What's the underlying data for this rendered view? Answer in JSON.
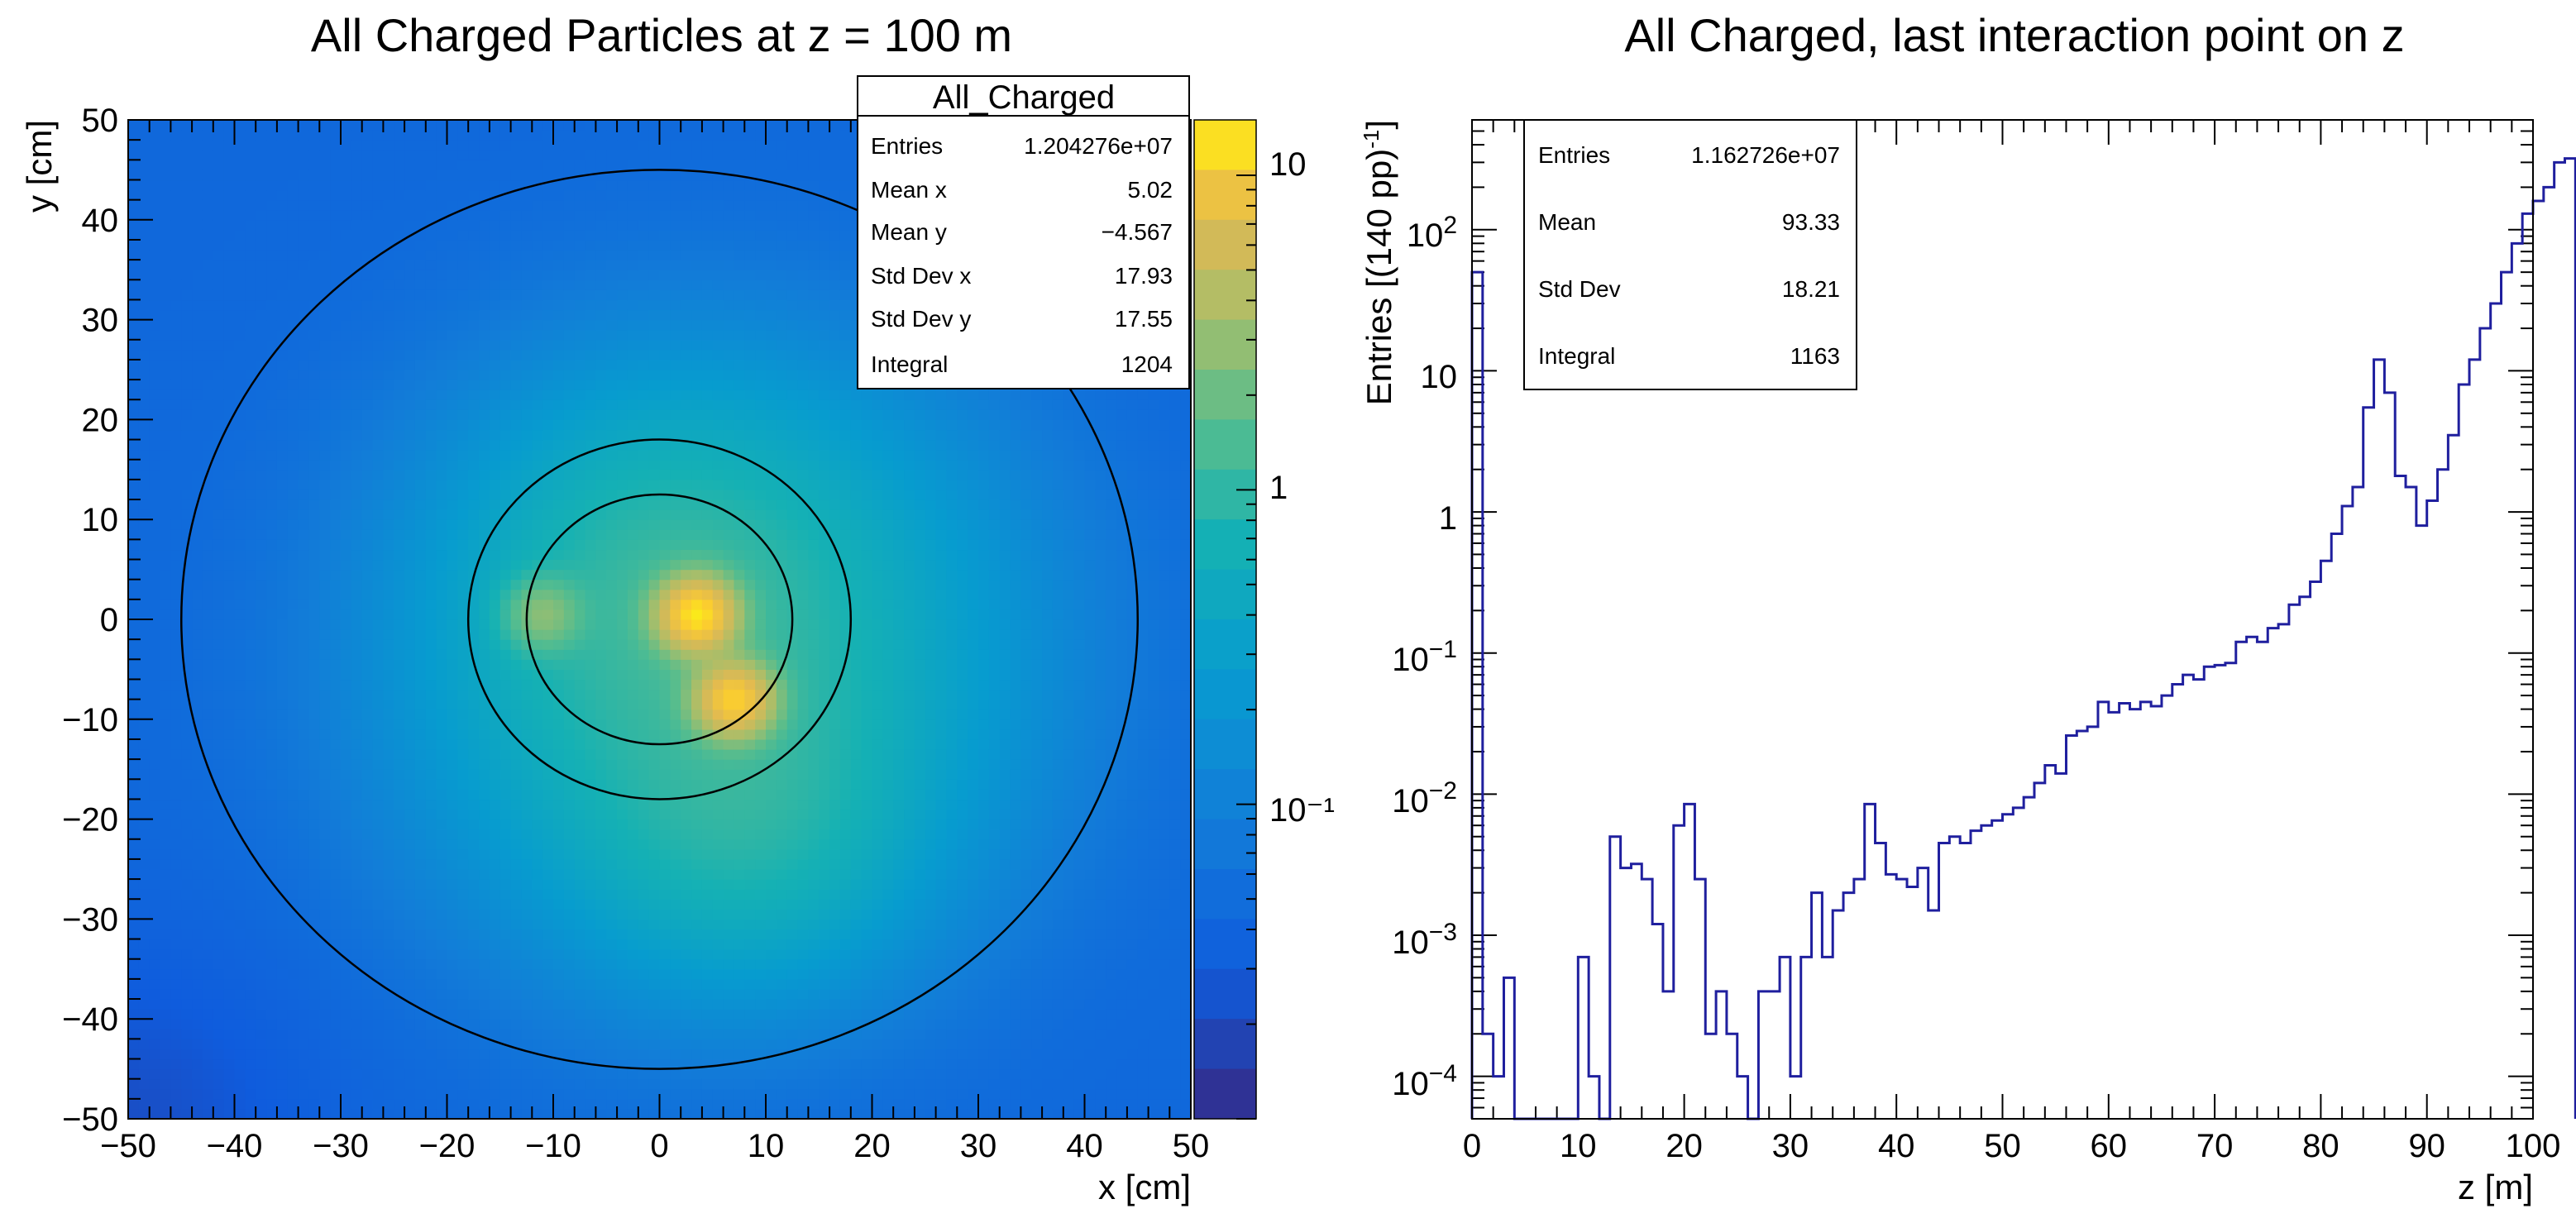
{
  "colors": {
    "line": "#1f1f9e",
    "frame": "#000000"
  },
  "chart_data": [
    {
      "type": "heatmap",
      "title": "All Charged Particles at z = 100 m",
      "xlabel": "x [cm]",
      "ylabel": "y [cm]",
      "xlim": [
        -50,
        50
      ],
      "ylim": [
        -50,
        50
      ],
      "xticks": [
        "−50",
        "−40",
        "−30",
        "−20",
        "−10",
        "0",
        "10",
        "20",
        "30",
        "40",
        "50"
      ],
      "yticks": [
        "−50",
        "−40",
        "−30",
        "−20",
        "−10",
        "0",
        "10",
        "20",
        "30",
        "40",
        "50"
      ],
      "colorbar": {
        "scale": "log",
        "range": [
          0.01,
          15
        ],
        "tick_labels": [
          "10",
          "1",
          "10⁻¹"
        ]
      },
      "circles": [
        {
          "center": [
            0,
            0
          ],
          "radius": 45
        },
        {
          "center": [
            0,
            0
          ],
          "radius": 18
        },
        {
          "center": [
            0,
            0
          ],
          "radius": 12.5
        }
      ],
      "hot_spots": [
        {
          "x": 7,
          "y": -8,
          "value": 10
        },
        {
          "x": 3.5,
          "y": 0.5,
          "value": 12
        },
        {
          "x": -11,
          "y": 0.5,
          "value": 2
        }
      ],
      "stats": {
        "name": "All_Charged",
        "rows": [
          {
            "label": "Entries",
            "value": "1.204276e+07"
          },
          {
            "label": "Mean x",
            "value": "5.02"
          },
          {
            "label": "Mean y",
            "value": "−4.567"
          },
          {
            "label": "Std Dev x",
            "value": "17.93"
          },
          {
            "label": "Std Dev y",
            "value": "17.55"
          },
          {
            "label": "Integral",
            "value": "1204"
          }
        ]
      }
    },
    {
      "type": "line",
      "style": "histogram-step",
      "title": "All Charged, last interaction point on z",
      "xlabel": "z [m]",
      "ylabel": "Entries [(140 pp)⁻¹]",
      "ylabel_main": "Entries [(140 pp)",
      "ylabel_sup": "-1",
      "ylabel_close": "]",
      "xlim": [
        0,
        100
      ],
      "ylim": [
        5e-05,
        600
      ],
      "yscale": "log",
      "xticks": [
        "0",
        "10",
        "20",
        "30",
        "40",
        "50",
        "60",
        "70",
        "80",
        "90",
        "100"
      ],
      "yticks": [
        {
          "base": "10",
          "exp": "2"
        },
        {
          "base": "10",
          "exp": ""
        },
        {
          "base": "1",
          "exp": ""
        },
        {
          "base": "10",
          "exp": "−1"
        },
        {
          "base": "10",
          "exp": "−2"
        },
        {
          "base": "10",
          "exp": "−3"
        },
        {
          "base": "10",
          "exp": "−4"
        }
      ],
      "bin_width": 1,
      "values": [
        50,
        0.0002,
        0.0001,
        0.0005,
        0,
        0,
        0,
        0,
        0,
        0,
        0.0007,
        0.0001,
        0,
        0.005,
        0.003,
        0.0032,
        0.0025,
        0.0012,
        0.0004,
        0.006,
        0.0085,
        0.0025,
        0.0002,
        0.0004,
        0.0002,
        0.0001,
        0,
        0.0004,
        0.0004,
        0.0007,
        0.0001,
        0.0007,
        0.002,
        0.0007,
        0.0015,
        0.002,
        0.0025,
        0.0085,
        0.0045,
        0.0027,
        0.0025,
        0.0022,
        0.003,
        0.0015,
        0.0045,
        0.005,
        0.0045,
        0.0055,
        0.006,
        0.0065,
        0.0072,
        0.008,
        0.0095,
        0.012,
        0.016,
        0.014,
        0.026,
        0.028,
        0.03,
        0.045,
        0.038,
        0.044,
        0.04,
        0.045,
        0.042,
        0.05,
        0.06,
        0.07,
        0.065,
        0.08,
        0.082,
        0.085,
        0.12,
        0.13,
        0.12,
        0.15,
        0.16,
        0.22,
        0.25,
        0.32,
        0.45,
        0.7,
        1.1,
        1.5,
        5.5,
        12,
        7,
        1.8,
        1.5,
        0.8,
        1.2,
        2,
        3.5,
        8,
        12,
        20,
        30,
        50,
        80,
        130,
        160,
        200,
        300,
        320
      ],
      "stats": {
        "rows": [
          {
            "label": "Entries",
            "value": "1.162726e+07"
          },
          {
            "label": "Mean",
            "value": "93.33"
          },
          {
            "label": "Std Dev",
            "value": "18.21"
          },
          {
            "label": "Integral",
            "value": "1163"
          }
        ]
      }
    }
  ]
}
